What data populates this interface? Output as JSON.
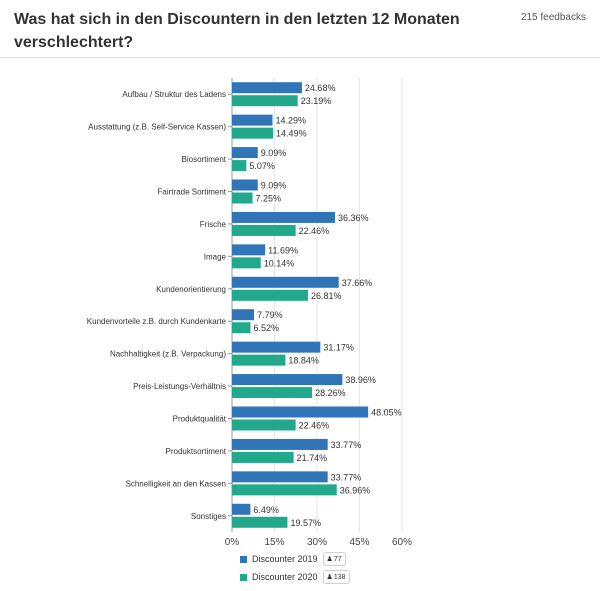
{
  "header": {
    "title": "Was hat sich in den Discountern in den letzten 12 Monaten verschlechtert?",
    "feedback_count": "215 feedbacks"
  },
  "legend": [
    {
      "name": "Discounter 2019",
      "color": "#2f75b8",
      "count": "77",
      "icon": "person-icon"
    },
    {
      "name": "Discounter 2020",
      "color": "#22a88a",
      "count": "138",
      "icon": "person-icon"
    }
  ],
  "chart_data": {
    "type": "bar",
    "orientation": "horizontal",
    "categories": [
      "Aufbau / Struktur des Ladens",
      "Ausstattung (z.B. Self-Service Kassen)",
      "Biosortiment",
      "Fairtrade Sortiment",
      "Frische",
      "Image",
      "Kundenorientierung",
      "Kundenvorteile z.B. durch Kundenkarte",
      "Nachhaltigkeit (z.B. Verpackung)",
      "Preis-Leistungs-Verhältnis",
      "Produktqualität",
      "Produktsortiment",
      "Schnelligkeit an den Kassen",
      "Sonstiges"
    ],
    "series": [
      {
        "name": "Discounter 2019",
        "color": "#2f75b8",
        "values": [
          24.68,
          14.29,
          9.09,
          9.09,
          36.36,
          11.69,
          37.66,
          7.79,
          31.17,
          38.96,
          48.05,
          33.77,
          33.77,
          6.49
        ]
      },
      {
        "name": "Discounter 2020",
        "color": "#22a88a",
        "values": [
          23.19,
          14.49,
          5.07,
          7.25,
          22.46,
          10.14,
          26.81,
          6.52,
          18.84,
          28.26,
          22.46,
          21.74,
          36.96,
          19.57
        ]
      }
    ],
    "xlim": [
      0,
      60
    ],
    "xticks": [
      0,
      15,
      30,
      45,
      60
    ],
    "tick_suffix": "%",
    "value_suffix": "%",
    "grid": true,
    "legend_position": "bottom"
  }
}
